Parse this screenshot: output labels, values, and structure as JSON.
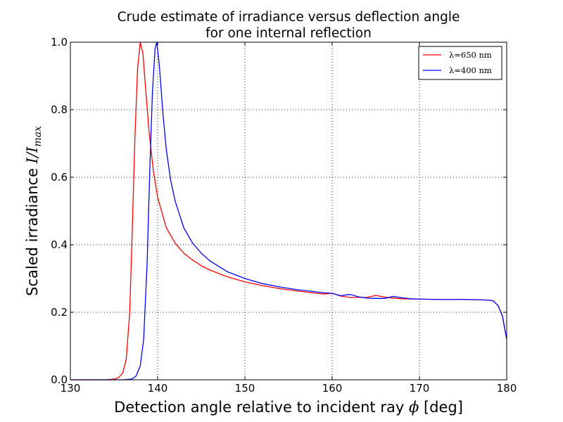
{
  "chart_data": {
    "type": "line",
    "title_line1": "Crude estimate of irradiance versus deflection angle",
    "title_line2": "for one internal reflection",
    "xlabel_text": "Detection angle relative to incident ray ",
    "xlabel_symbol": "ϕ",
    "xlabel_unit": " [deg]",
    "ylabel_text": "Scaled irradiance ",
    "ylabel_symbol": "I/I",
    "ylabel_subscript": "max",
    "xlim": [
      130,
      180
    ],
    "ylim": [
      0.0,
      1.0
    ],
    "xticks": [
      130,
      140,
      150,
      160,
      170,
      180
    ],
    "xtick_labels": [
      "130",
      "140",
      "150",
      "160",
      "170",
      "180"
    ],
    "yticks": [
      0.0,
      0.2,
      0.4,
      0.6,
      0.8,
      1.0
    ],
    "ytick_labels": [
      "0.0",
      "0.2",
      "0.4",
      "0.6",
      "0.8",
      "1.0"
    ],
    "grid": true,
    "legend_position": "top-right",
    "series": [
      {
        "name": "λ=650 nm",
        "color": "#ff0000",
        "points": [
          [
            130,
            0
          ],
          [
            134,
            0
          ],
          [
            135,
            0.002
          ],
          [
            135.5,
            0.006
          ],
          [
            136,
            0.02
          ],
          [
            136.4,
            0.06
          ],
          [
            136.8,
            0.2
          ],
          [
            137.1,
            0.45
          ],
          [
            137.4,
            0.72
          ],
          [
            137.7,
            0.92
          ],
          [
            138,
            1.0
          ],
          [
            138.3,
            0.97
          ],
          [
            138.6,
            0.87
          ],
          [
            139,
            0.74
          ],
          [
            139.5,
            0.62
          ],
          [
            140,
            0.54
          ],
          [
            141,
            0.45
          ],
          [
            142,
            0.405
          ],
          [
            143,
            0.375
          ],
          [
            144,
            0.355
          ],
          [
            145,
            0.338
          ],
          [
            146,
            0.325
          ],
          [
            148,
            0.305
          ],
          [
            150,
            0.29
          ],
          [
            152,
            0.279
          ],
          [
            154,
            0.27
          ],
          [
            156,
            0.263
          ],
          [
            158,
            0.257
          ],
          [
            159,
            0.254
          ],
          [
            160,
            0.256
          ],
          [
            161,
            0.248
          ],
          [
            162,
            0.244
          ],
          [
            163,
            0.244
          ],
          [
            164,
            0.244
          ],
          [
            165,
            0.25
          ],
          [
            166,
            0.245
          ],
          [
            167,
            0.242
          ],
          [
            168,
            0.24
          ],
          [
            170,
            0.239
          ],
          [
            172,
            0.238
          ],
          [
            175,
            0.238
          ],
          [
            177,
            0.237
          ],
          [
            178,
            0.236
          ],
          [
            178.5,
            0.233
          ],
          [
            179,
            0.22
          ],
          [
            179.5,
            0.19
          ],
          [
            180,
            0.12
          ]
        ]
      },
      {
        "name": "λ=400 nm",
        "color": "#0000ff",
        "points": [
          [
            130,
            0
          ],
          [
            136,
            0
          ],
          [
            137,
            0.002
          ],
          [
            137.5,
            0.01
          ],
          [
            138,
            0.04
          ],
          [
            138.4,
            0.12
          ],
          [
            138.8,
            0.35
          ],
          [
            139.1,
            0.62
          ],
          [
            139.4,
            0.85
          ],
          [
            139.7,
            0.98
          ],
          [
            139.9,
            1.0
          ],
          [
            140.2,
            0.93
          ],
          [
            140.6,
            0.79
          ],
          [
            141,
            0.68
          ],
          [
            141.5,
            0.59
          ],
          [
            142,
            0.53
          ],
          [
            143,
            0.45
          ],
          [
            144,
            0.405
          ],
          [
            145,
            0.375
          ],
          [
            146,
            0.352
          ],
          [
            148,
            0.32
          ],
          [
            150,
            0.3
          ],
          [
            152,
            0.285
          ],
          [
            154,
            0.275
          ],
          [
            156,
            0.267
          ],
          [
            158,
            0.261
          ],
          [
            159,
            0.258
          ],
          [
            160,
            0.256
          ],
          [
            161,
            0.249
          ],
          [
            162,
            0.253
          ],
          [
            163,
            0.246
          ],
          [
            164,
            0.242
          ],
          [
            165,
            0.241
          ],
          [
            166,
            0.241
          ],
          [
            167,
            0.247
          ],
          [
            168,
            0.243
          ],
          [
            169,
            0.24
          ],
          [
            170,
            0.239
          ],
          [
            172,
            0.238
          ],
          [
            175,
            0.238
          ],
          [
            177,
            0.237
          ],
          [
            178,
            0.236
          ],
          [
            178.5,
            0.233
          ],
          [
            179,
            0.22
          ],
          [
            179.5,
            0.19
          ],
          [
            180,
            0.12
          ]
        ]
      }
    ]
  }
}
